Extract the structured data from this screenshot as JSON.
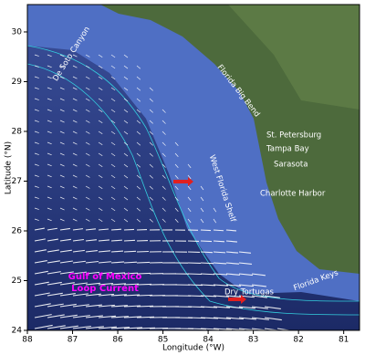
{
  "map": {
    "x_label": "Longitude (°W)",
    "y_label": "Latitude (°N)",
    "xlim": [
      88,
      80.65
    ],
    "ylim": [
      24,
      30.55
    ],
    "xticks": [
      88,
      87,
      86,
      85,
      84,
      83,
      82,
      81
    ],
    "yticks": [
      24,
      25,
      26,
      27,
      28,
      29,
      30
    ],
    "places": [
      "De Soto Canyon",
      "Florida Big Bend",
      "West Florida Shelf",
      "St. Petersburg",
      "Tampa Bay",
      "Sarasota",
      "Charlotte Harbor",
      "Florida Keys",
      "Dry Tortugas"
    ],
    "current_label": [
      "Gulf of Mexico",
      "Loop Current"
    ]
  }
}
